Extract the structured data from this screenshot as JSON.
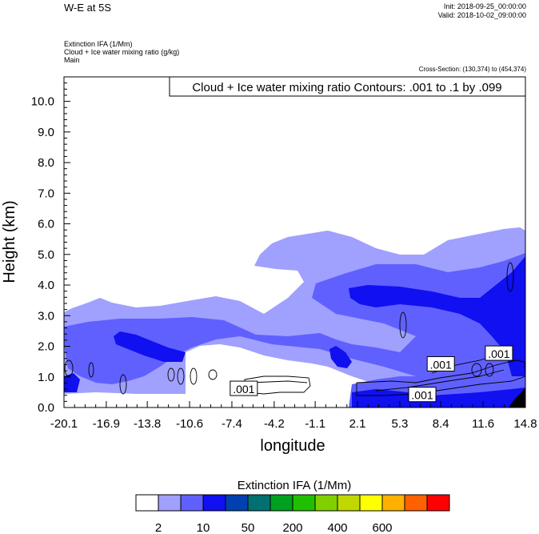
{
  "header": {
    "title": "W-E at 5S",
    "init": "Init: 2018-09-25_00:00:00",
    "valid": "Valid: 2018-10-02_09:00:00",
    "field_line1": "Extinction IFA   (1/Mm)",
    "field_line2": "Cloud + Ice water mixing ratio   (g/kg)",
    "field_line3": "Main",
    "cross_section": "Cross-Section: (130,374) to (454,374)"
  },
  "chart_data": {
    "type": "heatmap",
    "title": "Cloud + Ice water mixing ratio Contours: .001 to .1 by .099",
    "xlabel": "longitude",
    "ylabel": "Height (km)",
    "xlim": [
      -20.1,
      14.8
    ],
    "ylim": [
      0,
      10.8
    ],
    "x_ticks": [
      "-20.1",
      "-16.9",
      "-13.8",
      "-10.6",
      "-7.4",
      "-4.2",
      "-1.1",
      "2.1",
      "5.3",
      "8.4",
      "11.6",
      "14.8"
    ],
    "y_ticks": [
      "0.0",
      "1.0",
      "2.0",
      "3.0",
      "4.0",
      "5.0",
      "6.0",
      "7.0",
      "8.0",
      "9.0",
      "10.0"
    ],
    "contour_labels": [
      {
        "text": ".001",
        "lon": -6.5,
        "height": 0.6
      },
      {
        "text": ".001",
        "lon": 7.0,
        "height": 0.4
      },
      {
        "text": ".001",
        "lon": 8.4,
        "height": 1.4
      },
      {
        "text": ".001",
        "lon": 12.8,
        "height": 1.75
      }
    ],
    "colorbar": {
      "title": "Extinction IFA  (1/Mm)",
      "colors": [
        "#ffffff",
        "#a0a0ff",
        "#6060ff",
        "#1010f0",
        "#0040b0",
        "#007070",
        "#00a020",
        "#20c000",
        "#80d000",
        "#c0d800",
        "#ffff00",
        "#ffb000",
        "#ff6000",
        "#ff0000"
      ],
      "labels": [
        "2",
        "10",
        "50",
        "200",
        "400",
        "600"
      ]
    }
  }
}
